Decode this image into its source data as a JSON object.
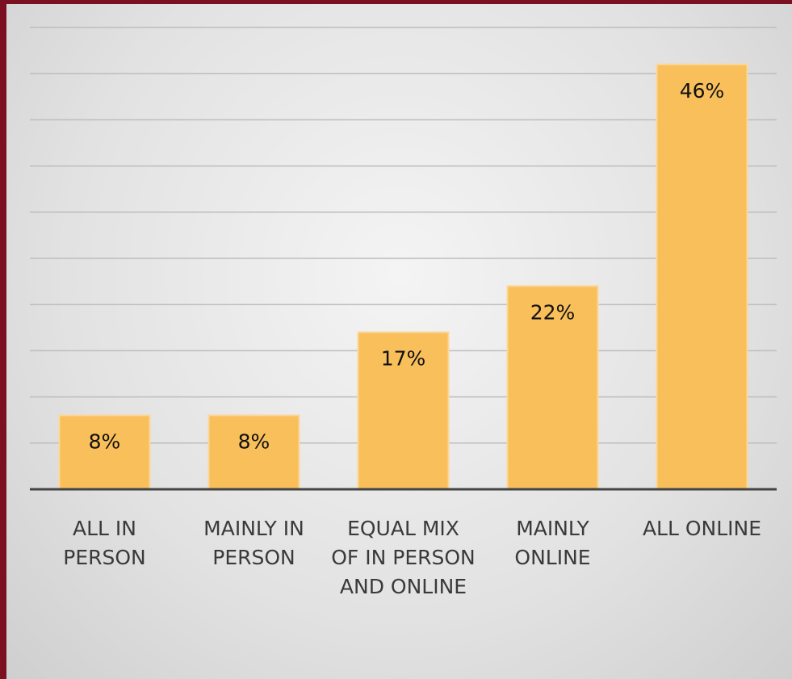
{
  "chart_data": {
    "type": "bar",
    "categories": [
      "ALL IN PERSON",
      "MAINLY IN PERSON",
      "EQUAL MIX OF IN PERSON AND ONLINE",
      "MAINLY ONLINE",
      "ALL ONLINE"
    ],
    "values": [
      8,
      8,
      17,
      22,
      46
    ],
    "value_labels": [
      "8%",
      "8%",
      "17%",
      "22%",
      "46%"
    ],
    "color": "#f9bf5a",
    "ylim": [
      0,
      50
    ],
    "yticks": [
      0,
      5,
      10,
      15,
      20,
      25,
      30,
      35,
      40,
      45,
      50
    ],
    "grid": true
  }
}
